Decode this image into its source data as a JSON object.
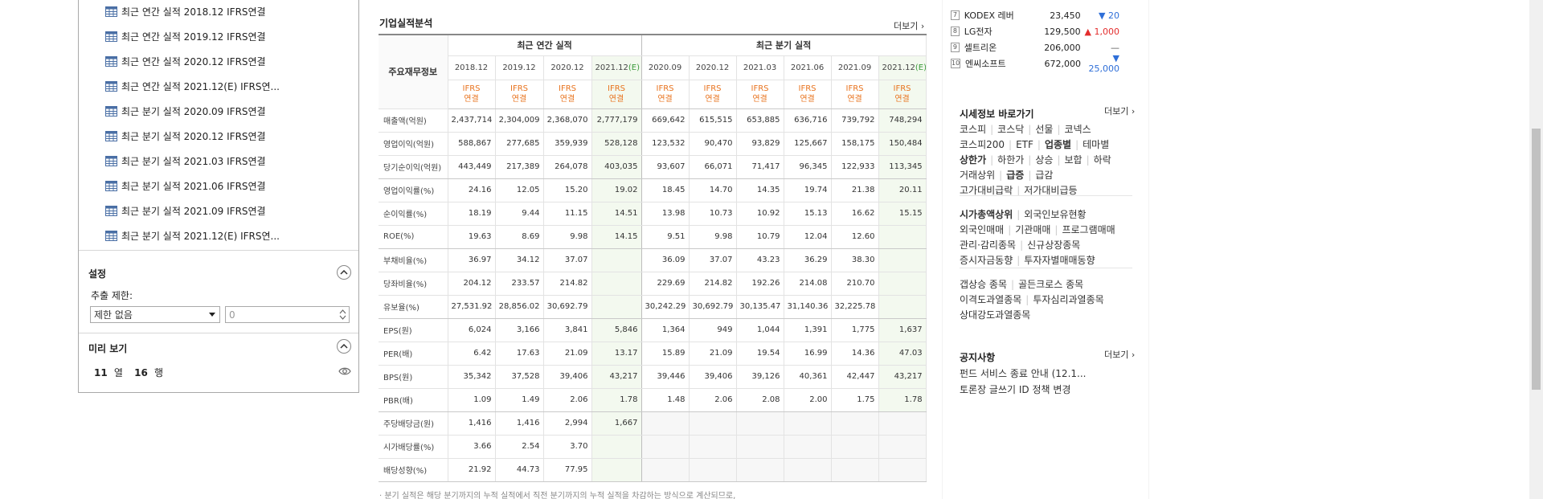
{
  "reports": [
    "최근 연간 실적 2018.12 IFRS연결",
    "최근 연간 실적 2019.12 IFRS연결",
    "최근 연간 실적 2020.12 IFRS연결",
    "최근 연간 실적 2021.12(E) IFRS연...",
    "최근 분기 실적 2020.09 IFRS연결",
    "최근 분기 실적 2020.12 IFRS연결",
    "최근 분기 실적 2021.03 IFRS연결",
    "최근 분기 실적 2021.06 IFRS연결",
    "최근 분기 실적 2021.09 IFRS연결",
    "최근 분기 실적 2021.12(E) IFRS연..."
  ],
  "settings": {
    "title": "설정",
    "limit_label": "추출 제한:",
    "limit_select": "제한 없음",
    "limit_value": "0"
  },
  "preview": {
    "title": "미리 보기",
    "cols": "11",
    "cols_unit": "열",
    "rows": "16",
    "rows_unit": "행"
  },
  "financials": {
    "title": "기업실적분석",
    "more": "더보기",
    "header_row_label": "주요재무정보",
    "annual_label": "최근 연간 실적",
    "quarter_label": "최근 분기 실적",
    "annual_periods": [
      "2018.12",
      "2019.12",
      "2020.12",
      "2021.12"
    ],
    "quarter_periods": [
      "2020.09",
      "2020.12",
      "2021.03",
      "2021.06",
      "2021.09",
      "2021.12"
    ],
    "estimate_mark": "(E)",
    "ifrs_line1": "IFRS",
    "ifrs_line2": "연결",
    "rows": [
      {
        "label": "매출액(억원)",
        "values": [
          "2,437,714",
          "2,304,009",
          "2,368,070",
          "2,777,179",
          "669,642",
          "615,515",
          "653,885",
          "636,716",
          "739,792",
          "748,294"
        ]
      },
      {
        "label": "영업이익(억원)",
        "values": [
          "588,867",
          "277,685",
          "359,939",
          "528,128",
          "123,532",
          "90,470",
          "93,829",
          "125,667",
          "158,175",
          "150,484"
        ]
      },
      {
        "label": "당기순이익(억원)",
        "values": [
          "443,449",
          "217,389",
          "264,078",
          "403,035",
          "93,607",
          "66,071",
          "71,417",
          "96,345",
          "122,933",
          "113,345"
        ]
      },
      {
        "label": "영업이익률(%)",
        "values": [
          "24.16",
          "12.05",
          "15.20",
          "19.02",
          "18.45",
          "14.70",
          "14.35",
          "19.74",
          "21.38",
          "20.11"
        ]
      },
      {
        "label": "순이익률(%)",
        "values": [
          "18.19",
          "9.44",
          "11.15",
          "14.51",
          "13.98",
          "10.73",
          "10.92",
          "15.13",
          "16.62",
          "15.15"
        ]
      },
      {
        "label": "ROE(%)",
        "values": [
          "19.63",
          "8.69",
          "9.98",
          "14.15",
          "9.51",
          "9.98",
          "10.79",
          "12.04",
          "12.60",
          ""
        ]
      },
      {
        "label": "부채비율(%)",
        "values": [
          "36.97",
          "34.12",
          "37.07",
          "",
          "36.09",
          "37.07",
          "43.23",
          "36.29",
          "38.30",
          ""
        ]
      },
      {
        "label": "당좌비율(%)",
        "values": [
          "204.12",
          "233.57",
          "214.82",
          "",
          "229.69",
          "214.82",
          "192.26",
          "214.08",
          "210.70",
          ""
        ]
      },
      {
        "label": "유보율(%)",
        "values": [
          "27,531.92",
          "28,856.02",
          "30,692.79",
          "",
          "30,242.29",
          "30,692.79",
          "30,135.47",
          "31,140.36",
          "32,225.78",
          ""
        ]
      },
      {
        "label": "EPS(원)",
        "values": [
          "6,024",
          "3,166",
          "3,841",
          "5,846",
          "1,364",
          "949",
          "1,044",
          "1,391",
          "1,775",
          "1,637"
        ]
      },
      {
        "label": "PER(배)",
        "values": [
          "6.42",
          "17.63",
          "21.09",
          "13.17",
          "15.89",
          "21.09",
          "19.54",
          "16.99",
          "14.36",
          "47.03"
        ]
      },
      {
        "label": "BPS(원)",
        "values": [
          "35,342",
          "37,528",
          "39,406",
          "43,217",
          "39,446",
          "39,406",
          "39,126",
          "40,361",
          "42,447",
          "43,217"
        ]
      },
      {
        "label": "PBR(배)",
        "values": [
          "1.09",
          "1.49",
          "2.06",
          "1.78",
          "1.48",
          "2.06",
          "2.08",
          "2.00",
          "1.75",
          "1.78"
        ]
      },
      {
        "label": "주당배당금(원)",
        "values": [
          "1,416",
          "1,416",
          "2,994",
          "1,667",
          "",
          "",
          "",
          "",
          "",
          ""
        ]
      },
      {
        "label": "시가배당률(%)",
        "values": [
          "3.66",
          "2.54",
          "3.70",
          "",
          "",
          "",
          "",
          "",
          "",
          ""
        ]
      },
      {
        "label": "배당성향(%)",
        "values": [
          "21.92",
          "44.73",
          "77.95",
          "",
          "",
          "",
          "",
          "",
          "",
          ""
        ]
      }
    ],
    "footnote": "· 분기 실적은 해당 분기까지의 누적 실적에서 직전 분기까지의 누적 실적을 차감하는 방식으로 계산되므로,"
  },
  "stocks": [
    {
      "rank": "7",
      "name": "KODEX 레버",
      "price": "23,450",
      "change": "▼ 20",
      "dir": "down"
    },
    {
      "rank": "8",
      "name": "LG전자",
      "price": "129,500",
      "change": "▲ 1,000",
      "dir": "up"
    },
    {
      "rank": "9",
      "name": "셀트리온",
      "price": "206,000",
      "change": "—",
      "dir": "flat"
    },
    {
      "rank": "10",
      "name": "엔씨소프트",
      "price": "672,000",
      "change": "▼ 25,000",
      "dir": "down"
    }
  ],
  "market_links": {
    "title": "시세정보 바로가기",
    "more": "더보기",
    "lines": [
      [
        "코스피",
        "코스닥",
        "선물",
        "코넥스"
      ],
      [
        "코스피200",
        "ETF",
        "업종별",
        "테마별"
      ],
      [
        "상한가",
        "하한가",
        "상승",
        "보합",
        "하락"
      ],
      [
        "거래상위",
        "급증",
        "급감"
      ],
      [
        "고가대비급락",
        "저가대비급등"
      ],
      [
        "시가총액상위",
        "외국인보유현황"
      ],
      [
        "외국인매매",
        "기관매매",
        "프로그램매매"
      ],
      [
        "관리·감리종목",
        "신규상장종목"
      ],
      [
        "증시자금동향",
        "투자자별매매동향"
      ],
      [
        "갭상승 종목",
        "골든크로스 종목"
      ],
      [
        "이격도과열종목",
        "투자심리과열종목"
      ],
      [
        "상대강도과열종목"
      ]
    ]
  },
  "notices": {
    "title": "공지사항",
    "more": "더보기",
    "items": [
      "펀드 서비스 종료 안내 (12.1...",
      "토론장 글쓰기 ID 정책 변경"
    ]
  }
}
